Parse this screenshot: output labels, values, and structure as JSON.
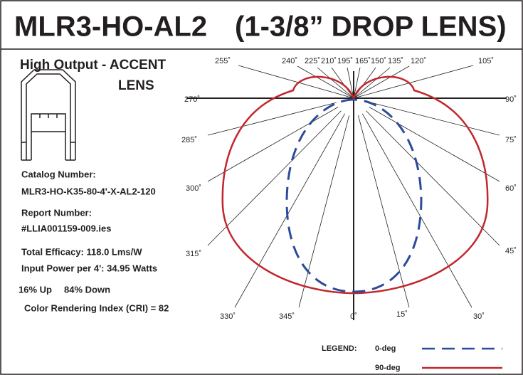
{
  "header": {
    "title": "MLR3-HO-AL2",
    "title_note": "(1-3/8” DROP LENS)"
  },
  "subtitle": [
    "High Output - ACCENT",
    "LENS"
  ],
  "info": [
    "Catalog Number:",
    "MLR3-HO-K35-80-4'-X-AL2-120",
    "Report Number:",
    "#LLIA001159-009.ies",
    "Total Efficacy:  118.0 Lms/W",
    "Input Power per 4':  34.95 Watts",
    "16% Up",
    "84% Down",
    "Color Rendering Index (CRI) = 82"
  ],
  "angle_labels": [
    "255˚",
    "240˚",
    "225˚",
    "210˚",
    "195˚",
    "165˚",
    "150˚",
    "135˚",
    "120˚",
    "105˚",
    "270˚",
    "90˚",
    "285˚",
    "75˚",
    "300˚",
    "60˚",
    "315˚",
    "45˚",
    "330˚",
    "345˚",
    "0˚",
    "15˚",
    "30˚"
  ],
  "legend": {
    "title": "LEGEND:",
    "items": [
      "0-deg",
      "90-deg"
    ]
  }
}
